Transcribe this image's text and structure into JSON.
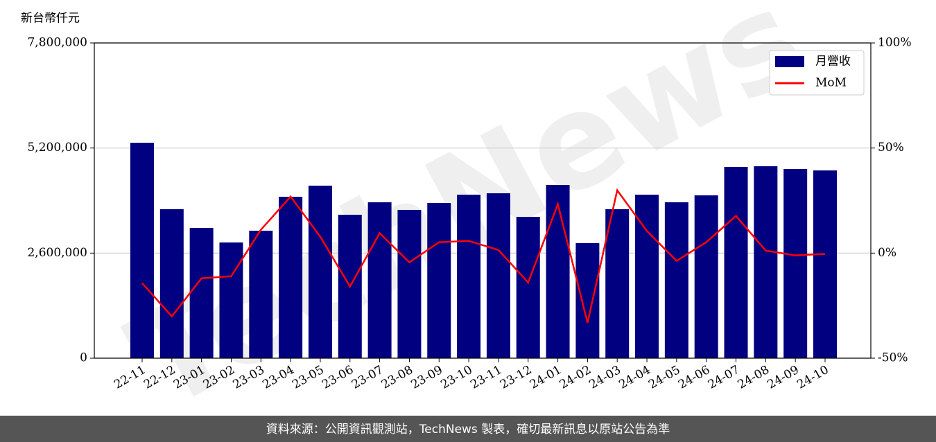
{
  "chart_data": {
    "type": "bar_line",
    "y_unit_label": "新台幣仟元",
    "watermark": "TechNews",
    "footer": "資料來源：公開資訊觀測站，TechNews 製表，確切最新訊息以原站公告為準",
    "categories": [
      "22-11",
      "22-12",
      "23-01",
      "23-02",
      "23-03",
      "23-04",
      "23-05",
      "23-06",
      "23-07",
      "23-08",
      "23-09",
      "23-10",
      "23-11",
      "23-12",
      "24-01",
      "24-02",
      "24-03",
      "24-04",
      "24-05",
      "24-06",
      "24-07",
      "24-08",
      "24-09",
      "24-10"
    ],
    "series": [
      {
        "name": "月營收",
        "type": "bar",
        "color": "#000080",
        "values": [
          5330000,
          3686000,
          3223000,
          2863000,
          3154000,
          3994000,
          4269000,
          3549000,
          3857000,
          3669000,
          3840000,
          4046000,
          4080000,
          3497000,
          4286000,
          2846000,
          3686000,
          4046000,
          3857000,
          4029000,
          4731000,
          4749000,
          4680000,
          4646000
        ]
      },
      {
        "name": "MoM",
        "type": "line",
        "axis": "y2",
        "color": "#ff0000",
        "values": [
          -14.3,
          -30.1,
          -12.0,
          -11.0,
          11.1,
          26.9,
          7.8,
          -15.9,
          9.5,
          -4.4,
          5.2,
          5.8,
          1.5,
          -14.0,
          23.3,
          -33.1,
          29.9,
          10.5,
          -3.7,
          5.2,
          17.7,
          1.2,
          -1.1,
          -0.4
        ]
      }
    ],
    "ylim": [
      0,
      7800000
    ],
    "yticks": [
      0,
      {
        "value": 2600000,
        "label": "2,600,000"
      },
      {
        "value": 5200000,
        "label": "5,200,000"
      },
      {
        "value": 7800000,
        "label": "7,800,000"
      }
    ],
    "y2lim": [
      -50,
      100
    ],
    "y2ticks": [
      {
        "value": -50,
        "label": "-50%"
      },
      {
        "value": 0,
        "label": "0%"
      },
      {
        "value": 50,
        "label": "50%"
      },
      {
        "value": 100,
        "label": "100%"
      }
    ],
    "grid": true,
    "legend": "upper right"
  }
}
